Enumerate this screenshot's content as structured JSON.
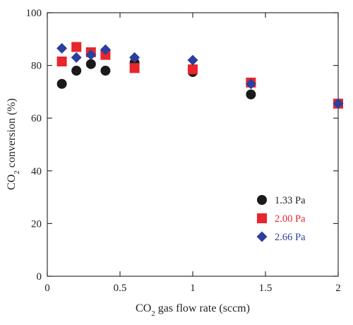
{
  "chart_data": {
    "type": "scatter",
    "xlabel": {
      "main": "CO",
      "sub": "2",
      "rest": " gas flow rate (sccm)"
    },
    "ylabel": {
      "main": "CO",
      "sub": "2",
      "rest": " conversion (%)"
    },
    "xlim": [
      0,
      2
    ],
    "ylim": [
      0,
      100
    ],
    "xticks": [
      0,
      0.5,
      1,
      1.5,
      2
    ],
    "xtick_labels": [
      "0",
      "0.5",
      "1",
      "1.5",
      "2"
    ],
    "yticks": [
      0,
      20,
      40,
      60,
      80,
      100
    ],
    "ytick_labels": [
      "0",
      "20",
      "40",
      "60",
      "80",
      "100"
    ],
    "grid": false,
    "legend_position": "bottom-right",
    "series": [
      {
        "name": "1.33 Pa",
        "marker": "circle",
        "color": "#1a1a1a",
        "text_color": "#222222",
        "x": [
          0.1,
          0.2,
          0.3,
          0.4,
          0.6,
          1.0,
          1.4,
          2.0
        ],
        "y": [
          73,
          78,
          80.5,
          78,
          81,
          77.5,
          69,
          65.5
        ]
      },
      {
        "name": "2.00 Pa",
        "marker": "square",
        "color": "#e8262c",
        "text_color": "#e8262c",
        "x": [
          0.1,
          0.2,
          0.3,
          0.4,
          0.6,
          1.0,
          1.4,
          2.0
        ],
        "y": [
          81.5,
          87,
          85,
          84,
          79,
          78.5,
          73.5,
          65.5
        ]
      },
      {
        "name": "2.66 Pa",
        "marker": "diamond",
        "color": "#2b3f9e",
        "text_color": "#2b3f9e",
        "x": [
          0.1,
          0.2,
          0.3,
          0.4,
          0.6,
          1.0,
          1.4,
          2.0
        ],
        "y": [
          86.5,
          83,
          84,
          86,
          83,
          82,
          73,
          65.5
        ]
      }
    ]
  }
}
